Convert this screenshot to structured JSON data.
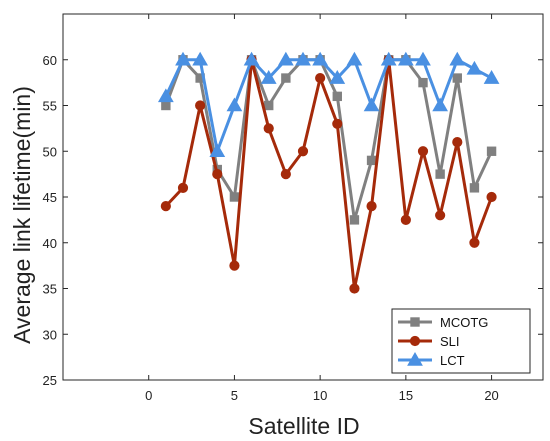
{
  "chart_data": {
    "type": "line",
    "xlabel": "Satellite ID",
    "ylabel": "Average link lifetime(min)",
    "xlim": [
      -5,
      23
    ],
    "ylim": [
      25,
      65
    ],
    "xticks": [
      0,
      5,
      10,
      15,
      20
    ],
    "yticks": [
      25,
      30,
      35,
      40,
      45,
      50,
      55,
      60
    ],
    "grid": false,
    "legend_position": "bottom-right",
    "x": [
      1,
      2,
      3,
      4,
      5,
      6,
      7,
      8,
      9,
      10,
      11,
      12,
      13,
      14,
      15,
      16,
      17,
      18,
      19,
      20
    ],
    "series": [
      {
        "name": "MCOTG",
        "color": "#808080",
        "marker": "square",
        "values": [
          55,
          60,
          58,
          48,
          45,
          60,
          55,
          58,
          60,
          60,
          56,
          42.5,
          49,
          60,
          60,
          57.5,
          47.5,
          58,
          46,
          50
        ]
      },
      {
        "name": "SLI",
        "color": "#a52a0a",
        "marker": "circle",
        "values": [
          44,
          46,
          55,
          47.5,
          37.5,
          60,
          52.5,
          47.5,
          50,
          58,
          53,
          35,
          44,
          60,
          42.5,
          50,
          43,
          51,
          40,
          45
        ]
      },
      {
        "name": "LCT",
        "color": "#4a90e2",
        "marker": "triangle",
        "values": [
          56,
          60,
          60,
          50,
          55,
          60,
          58,
          60,
          60,
          60,
          58,
          60,
          55,
          60,
          60,
          60,
          55,
          60,
          59,
          58
        ]
      }
    ]
  }
}
